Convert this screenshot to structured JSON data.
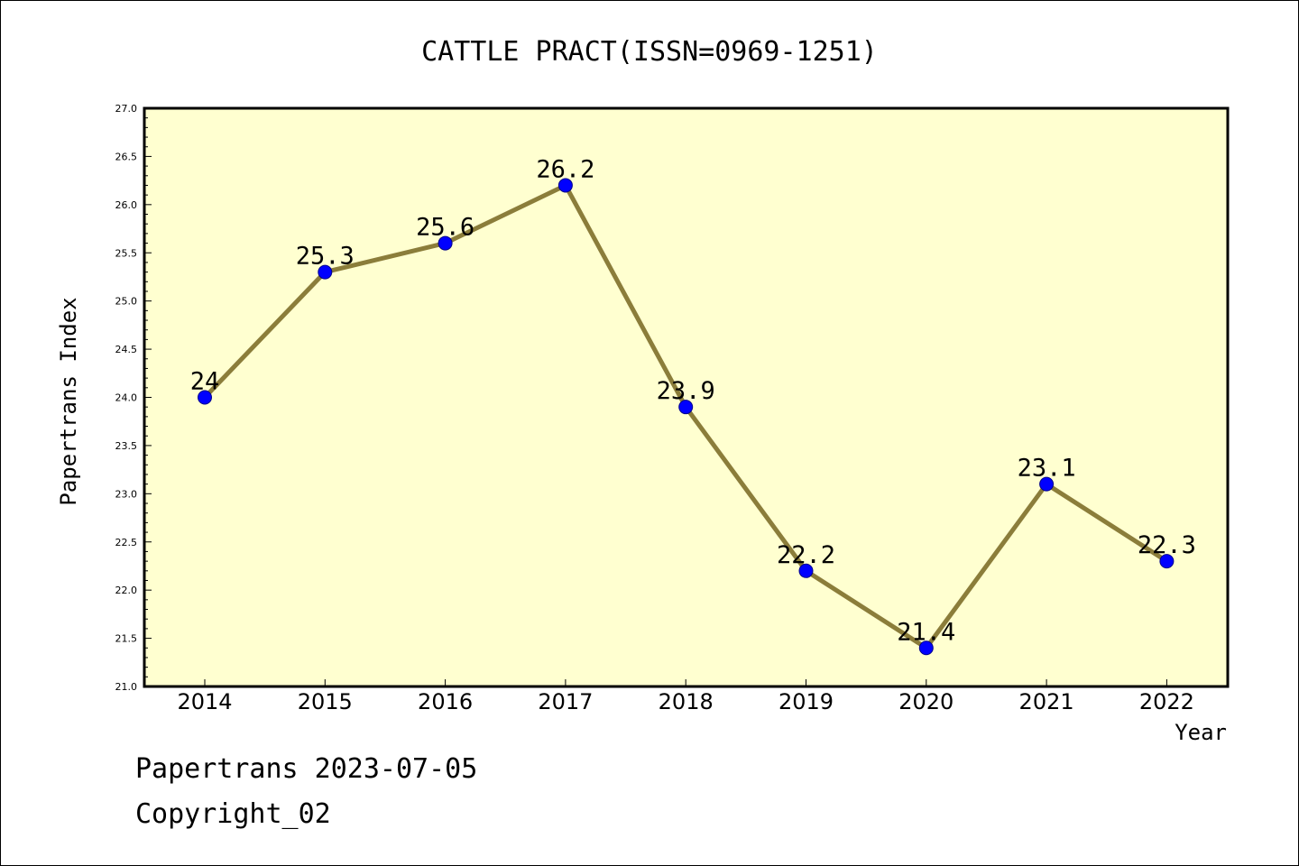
{
  "chart_data": {
    "type": "line",
    "title": "CATTLE PRACT(ISSN=0969-1251)",
    "xlabel": "Year",
    "ylabel": "Papertrans Index",
    "categories": [
      "2014",
      "2015",
      "2016",
      "2017",
      "2018",
      "2019",
      "2020",
      "2021",
      "2022"
    ],
    "series": [
      {
        "values": [
          24,
          25.3,
          25.6,
          26.2,
          23.9,
          22.2,
          21.4,
          23.1,
          22.3
        ],
        "data_labels": [
          "24",
          "25.3",
          "25.6",
          "26.2",
          "23.9",
          "22.2",
          "21.4",
          "23.1",
          "22.3"
        ]
      }
    ],
    "ylim": [
      21.0,
      27.0
    ],
    "yticks": [
      "21.0",
      "21.5",
      "22.0",
      "22.5",
      "23.0",
      "23.5",
      "24.0",
      "24.5",
      "25.0",
      "25.5",
      "26.0",
      "26.5",
      "27.0"
    ],
    "grid": false,
    "legend": "none",
    "colors": {
      "plot_background": "#ffffd0",
      "line": "#8b7d3a",
      "marker": "#0000ff"
    }
  },
  "footer": {
    "line1": "Papertrans 2023-07-05",
    "line2": "Copyright_02"
  }
}
